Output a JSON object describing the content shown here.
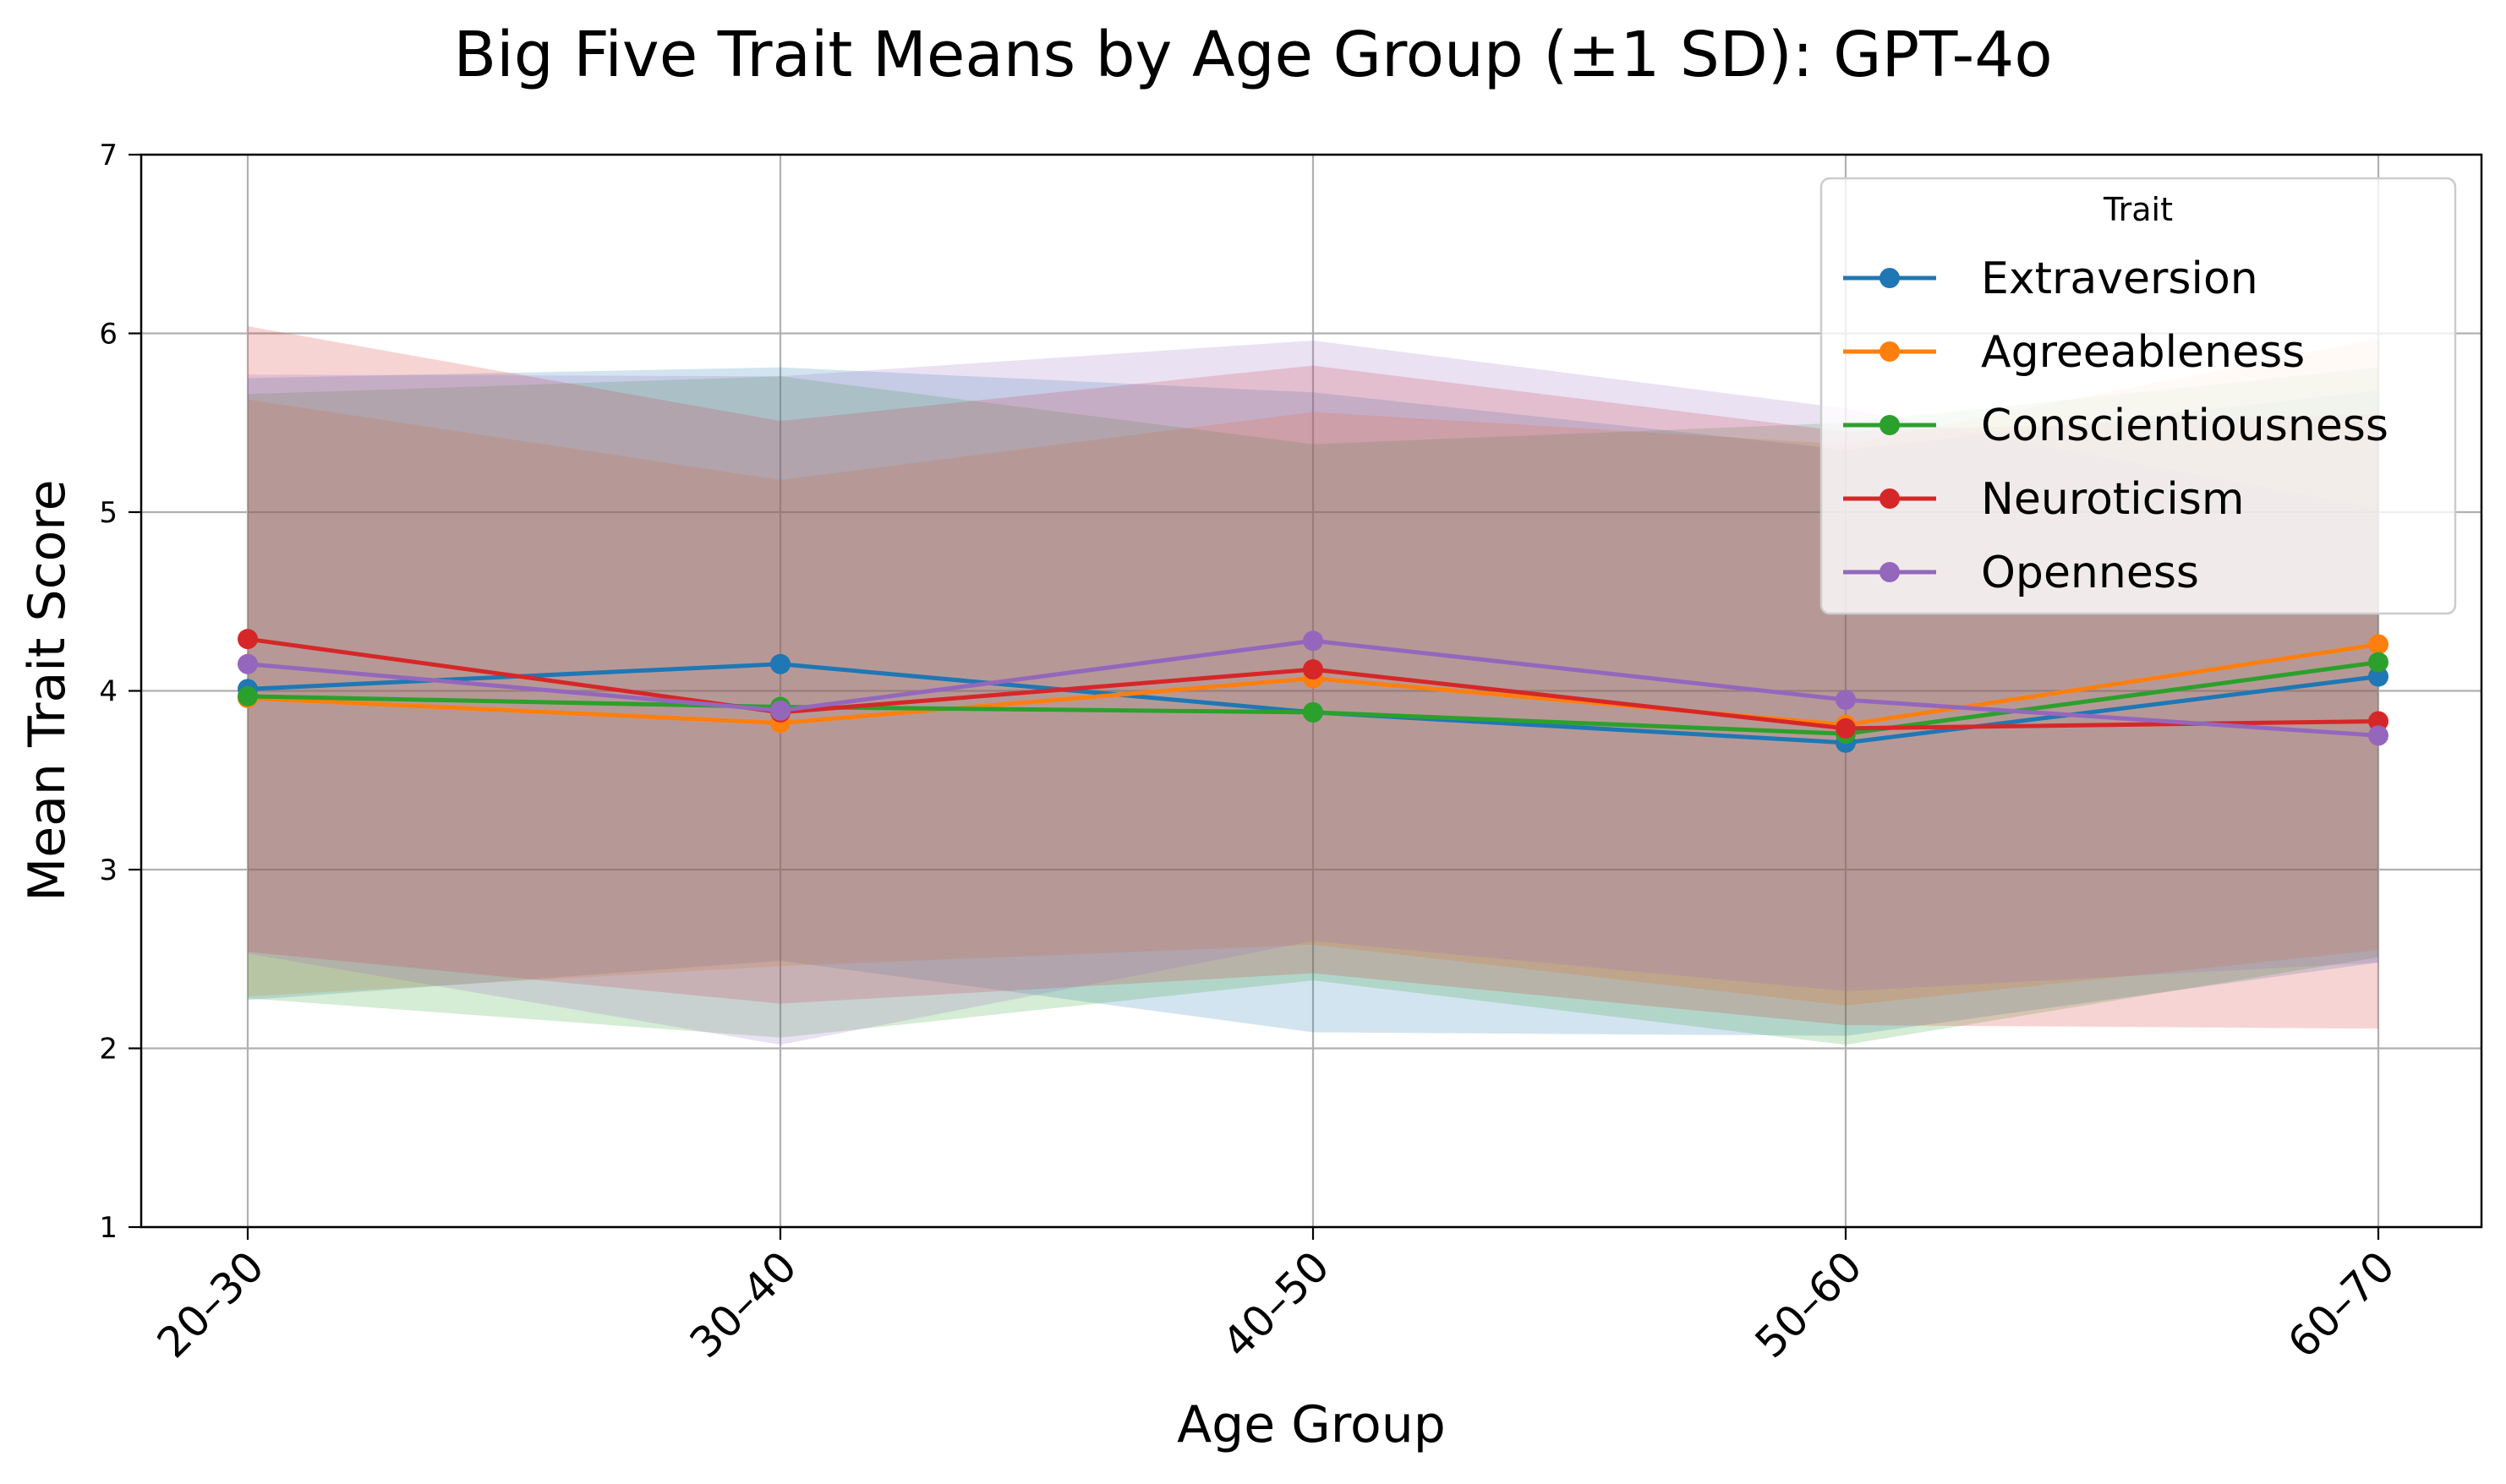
{
  "chart_data": {
    "type": "line",
    "title": "Big Five Trait Means by Age Group (±1 SD): GPT-4o",
    "xlabel": "Age Group",
    "ylabel": "Mean Trait Score",
    "categories": [
      "20–30",
      "30–40",
      "40–50",
      "50–60",
      "60–70"
    ],
    "ylim": [
      1,
      7
    ],
    "yticks": [
      1,
      2,
      3,
      4,
      5,
      6,
      7
    ],
    "grid": true,
    "band": "±1 SD",
    "legend": {
      "title": "Trait",
      "placement": "top-right"
    },
    "series": [
      {
        "name": "Extraversion",
        "color": "#1f77b4",
        "values": [
          4.01,
          4.15,
          3.88,
          3.71,
          4.08
        ],
        "sd": [
          1.74,
          1.66,
          1.79,
          1.64,
          1.6
        ]
      },
      {
        "name": "Agreeableness",
        "color": "#ff7f0e",
        "values": [
          3.96,
          3.82,
          4.07,
          3.81,
          4.26
        ],
        "sd": [
          1.67,
          1.36,
          1.49,
          1.57,
          1.71
        ]
      },
      {
        "name": "Conscientiousness",
        "color": "#2ca02c",
        "values": [
          3.97,
          3.91,
          3.88,
          3.76,
          4.16
        ],
        "sd": [
          1.69,
          1.85,
          1.5,
          1.74,
          1.65
        ]
      },
      {
        "name": "Neuroticism",
        "color": "#d62728",
        "values": [
          4.29,
          3.88,
          4.12,
          3.79,
          3.83
        ],
        "sd": [
          1.75,
          1.63,
          1.7,
          1.66,
          1.72
        ]
      },
      {
        "name": "Openness",
        "color": "#9467bd",
        "values": [
          4.15,
          3.89,
          4.28,
          3.95,
          3.75
        ],
        "sd": [
          1.62,
          1.87,
          1.68,
          1.63,
          1.27
        ]
      }
    ]
  }
}
